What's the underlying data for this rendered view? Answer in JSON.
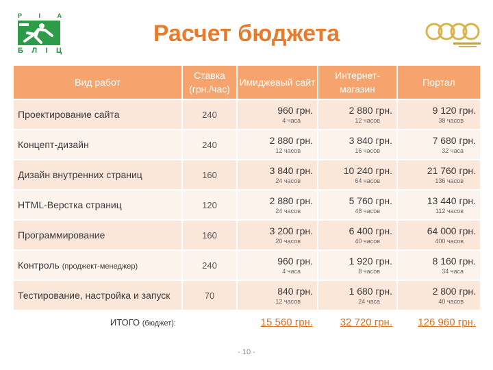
{
  "logo_left": {
    "top_letters": [
      "Р",
      "І",
      "А"
    ],
    "bottom_letters": [
      "Б",
      "Л",
      "І",
      "Ц"
    ]
  },
  "title": "Расчет бюджета",
  "columns": [
    "Вид работ",
    "Ставка (грн./час)",
    "Имиджевый сайт",
    "Интернет-магазин",
    "Портал"
  ],
  "rows": [
    {
      "name": "Проектирование сайта",
      "name_note": "",
      "rate": "240",
      "cells": [
        {
          "amount": "960 грн.",
          "hours": "4 часа"
        },
        {
          "amount": "2 880 грн.",
          "hours": "12 часов"
        },
        {
          "amount": "9 120 грн.",
          "hours": "38 часов"
        }
      ]
    },
    {
      "name": "Концепт-дизайн",
      "name_note": "",
      "rate": "240",
      "cells": [
        {
          "amount": "2 880 грн.",
          "hours": "12 часов"
        },
        {
          "amount": "3 840 грн.",
          "hours": "16 часов"
        },
        {
          "amount": "7 680 грн.",
          "hours": "32 часа"
        }
      ]
    },
    {
      "name": "Дизайн внутренних страниц",
      "name_note": "",
      "rate": "160",
      "cells": [
        {
          "amount": "3 840 грн.",
          "hours": "24 часов"
        },
        {
          "amount": "10 240 грн.",
          "hours": "64 часов"
        },
        {
          "amount": "21 760 грн.",
          "hours": "136 часов"
        }
      ]
    },
    {
      "name": "HTML-Верстка страниц",
      "name_note": "",
      "rate": "120",
      "cells": [
        {
          "amount": "2 880 грн.",
          "hours": "24 часов"
        },
        {
          "amount": "5 760 грн.",
          "hours": "48 часов"
        },
        {
          "amount": "13 440 грн.",
          "hours": "112 часов"
        }
      ]
    },
    {
      "name": "Программирование",
      "name_note": "",
      "rate": "160",
      "cells": [
        {
          "amount": "3 200 грн.",
          "hours": "20 часов"
        },
        {
          "amount": "6 400 грн.",
          "hours": "40 часов"
        },
        {
          "amount": "64 000 грн.",
          "hours": "400 часов"
        }
      ]
    },
    {
      "name": "Контроль",
      "name_note": "(проджект-менеджер)",
      "rate": "240",
      "cells": [
        {
          "amount": "960 грн.",
          "hours": "4 часа"
        },
        {
          "amount": "1 920 грн.",
          "hours": "8 часов"
        },
        {
          "amount": "8 160 грн.",
          "hours": "34 часа"
        }
      ]
    },
    {
      "name": "Тестирование, настройка и запуск",
      "name_note": "",
      "rate": "70",
      "cells": [
        {
          "amount": "840 грн.",
          "hours": "12 часов"
        },
        {
          "amount": "1 680 грн.",
          "hours": "24 часа"
        },
        {
          "amount": "2 800 грн.",
          "hours": "40 часов"
        }
      ]
    }
  ],
  "total": {
    "label": "ИТОГО",
    "note": "(бюджет):",
    "values": [
      "15 560 грн.",
      "32 720 грн.",
      "126 960 грн."
    ]
  },
  "page_number": "- 10 -",
  "colors": {
    "accent": "#e87b2c",
    "header_bg": "#f4a46c",
    "row_odd": "#fbe6da",
    "row_even": "#fdf3ed",
    "logo_green": "#2e9b48",
    "logo_gold": "#d9b44a"
  }
}
